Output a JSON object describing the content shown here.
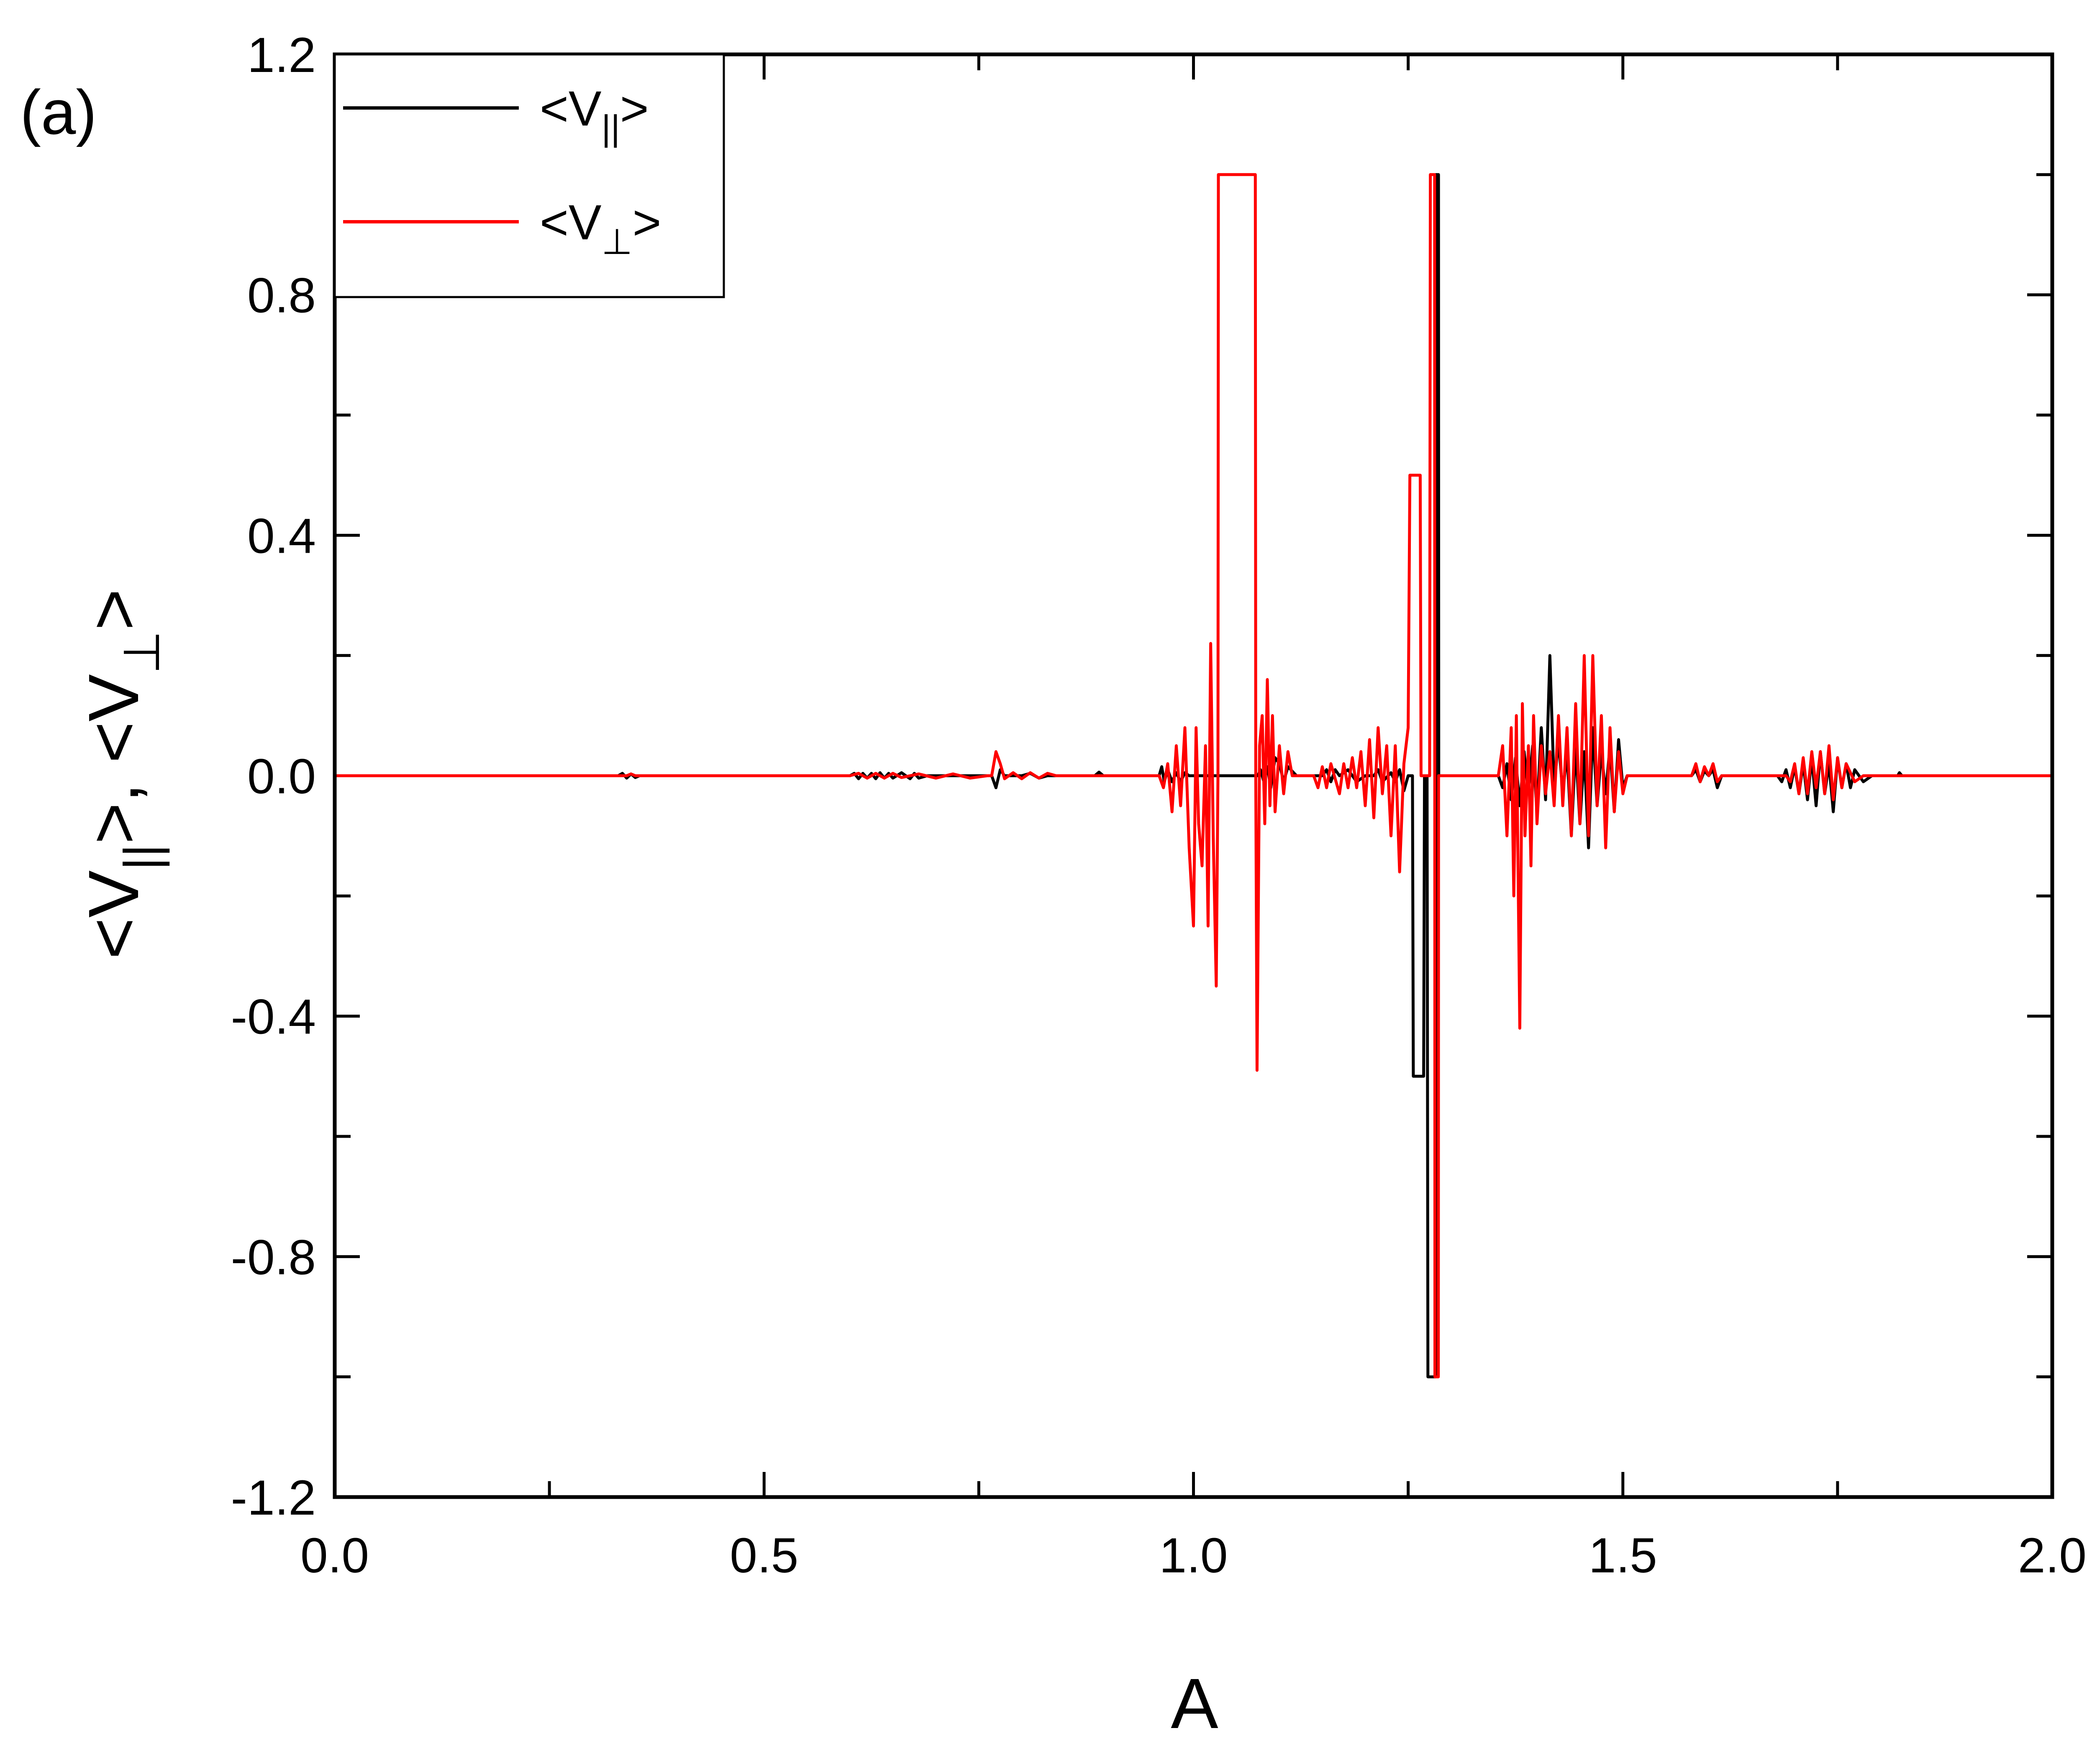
{
  "chart_data": {
    "type": "line",
    "panel_label": "(a)",
    "xlabel": "A",
    "ylabel": {
      "open": "<V",
      "sub_par": "||",
      "mid": ">, <V",
      "sub_perp": "⊥",
      "close": ">"
    },
    "xlim": [
      0.0,
      2.0
    ],
    "ylim": [
      -1.2,
      1.2
    ],
    "x_ticks": [
      "0.0",
      "0.5",
      "1.0",
      "1.5",
      "2.0"
    ],
    "y_ticks": [
      "-1.2",
      "-0.8",
      "-0.4",
      "0.0",
      "0.4",
      "0.8",
      "1.2"
    ],
    "legend_position": "top-left",
    "series": [
      {
        "name": {
          "open": "<V",
          "sub": "||",
          "close": ">"
        },
        "color": "#000000",
        "points": [
          [
            0.0,
            0
          ],
          [
            0.33,
            0
          ],
          [
            0.335,
            0.004
          ],
          [
            0.34,
            -0.004
          ],
          [
            0.345,
            0.003
          ],
          [
            0.35,
            -0.003
          ],
          [
            0.355,
            0
          ],
          [
            0.6,
            0
          ],
          [
            0.605,
            0.004
          ],
          [
            0.61,
            -0.005
          ],
          [
            0.615,
            0.004
          ],
          [
            0.62,
            -0.004
          ],
          [
            0.625,
            0.004
          ],
          [
            0.63,
            -0.005
          ],
          [
            0.635,
            0.005
          ],
          [
            0.64,
            -0.004
          ],
          [
            0.645,
            0.004
          ],
          [
            0.65,
            -0.004
          ],
          [
            0.66,
            0.005
          ],
          [
            0.67,
            -0.005
          ],
          [
            0.675,
            0.004
          ],
          [
            0.68,
            -0.004
          ],
          [
            0.69,
            0
          ],
          [
            0.765,
            0
          ],
          [
            0.77,
            -0.02
          ],
          [
            0.775,
            0.01
          ],
          [
            0.78,
            0
          ],
          [
            0.8,
            0
          ],
          [
            0.81,
            0.004
          ],
          [
            0.82,
            -0.004
          ],
          [
            0.83,
            0
          ],
          [
            0.885,
            0
          ],
          [
            0.89,
            0.006
          ],
          [
            0.895,
            0
          ],
          [
            0.96,
            0
          ],
          [
            0.963,
            0.015
          ],
          [
            0.966,
            -0.01
          ],
          [
            0.97,
            0.01
          ],
          [
            0.975,
            -0.01
          ],
          [
            0.98,
            0.005
          ],
          [
            0.985,
            -0.01
          ],
          [
            0.99,
            0.005
          ],
          [
            0.995,
            0
          ],
          [
            1.05,
            0
          ],
          [
            1.075,
            0
          ],
          [
            1.078,
            0.01
          ],
          [
            1.082,
            -0.01
          ],
          [
            1.086,
            0.015
          ],
          [
            1.09,
            -0.02
          ],
          [
            1.095,
            0.03
          ],
          [
            1.1,
            0.02
          ],
          [
            1.105,
            -0.01
          ],
          [
            1.11,
            0.015
          ],
          [
            1.12,
            0
          ],
          [
            1.15,
            0
          ],
          [
            1.155,
            0.01
          ],
          [
            1.16,
            -0.01
          ],
          [
            1.165,
            0.01
          ],
          [
            1.17,
            0
          ],
          [
            1.18,
            0.01
          ],
          [
            1.19,
            -0.01
          ],
          [
            1.2,
            0
          ],
          [
            1.21,
            0
          ],
          [
            1.215,
            0.01
          ],
          [
            1.22,
            -0.01
          ],
          [
            1.23,
            0.005
          ],
          [
            1.235,
            -0.01
          ],
          [
            1.24,
            0.01
          ],
          [
            1.245,
            -0.025
          ],
          [
            1.25,
            0
          ],
          [
            1.255,
            0
          ],
          [
            1.256,
            -0.5
          ],
          [
            1.268,
            -0.5
          ],
          [
            1.269,
            0
          ],
          [
            1.272,
            0
          ],
          [
            1.273,
            -1.0
          ],
          [
            1.282,
            -1.0
          ],
          [
            1.2823,
            1.0
          ],
          [
            1.2853,
            1.0
          ],
          [
            1.2856,
            0
          ],
          [
            1.355,
            0
          ],
          [
            1.36,
            -0.02
          ],
          [
            1.365,
            0.02
          ],
          [
            1.37,
            -0.04
          ],
          [
            1.375,
            0.03
          ],
          [
            1.38,
            -0.05
          ],
          [
            1.385,
            0.04
          ],
          [
            1.39,
            -0.03
          ],
          [
            1.395,
            0.05
          ],
          [
            1.4,
            -0.06
          ],
          [
            1.405,
            0.08
          ],
          [
            1.41,
            -0.04
          ],
          [
            1.415,
            0.2
          ],
          [
            1.42,
            -0.02
          ],
          [
            1.425,
            0.06
          ],
          [
            1.43,
            -0.03
          ],
          [
            1.435,
            0.04
          ],
          [
            1.44,
            -0.1
          ],
          [
            1.445,
            0.05
          ],
          [
            1.45,
            -0.08
          ],
          [
            1.455,
            0.04
          ],
          [
            1.46,
            -0.12
          ],
          [
            1.465,
            0.08
          ],
          [
            1.47,
            -0.05
          ],
          [
            1.475,
            0.04
          ],
          [
            1.48,
            -0.03
          ],
          [
            1.485,
            0.05
          ],
          [
            1.49,
            -0.06
          ],
          [
            1.495,
            0.06
          ],
          [
            1.5,
            -0.02
          ],
          [
            1.505,
            0
          ],
          [
            1.58,
            0
          ],
          [
            1.585,
            0.01
          ],
          [
            1.59,
            -0.01
          ],
          [
            1.595,
            0.008
          ],
          [
            1.6,
            0
          ],
          [
            1.605,
            0.01
          ],
          [
            1.61,
            -0.02
          ],
          [
            1.615,
            0
          ],
          [
            1.68,
            0
          ],
          [
            1.685,
            -0.01
          ],
          [
            1.69,
            0.01
          ],
          [
            1.695,
            -0.02
          ],
          [
            1.7,
            0.015
          ],
          [
            1.705,
            -0.03
          ],
          [
            1.71,
            0.02
          ],
          [
            1.715,
            -0.04
          ],
          [
            1.72,
            0.03
          ],
          [
            1.725,
            -0.05
          ],
          [
            1.73,
            0.04
          ],
          [
            1.735,
            -0.03
          ],
          [
            1.74,
            0.02
          ],
          [
            1.745,
            -0.06
          ],
          [
            1.75,
            0.03
          ],
          [
            1.755,
            -0.02
          ],
          [
            1.76,
            0.02
          ],
          [
            1.765,
            -0.02
          ],
          [
            1.77,
            0.01
          ],
          [
            1.78,
            -0.01
          ],
          [
            1.79,
            0
          ],
          [
            1.82,
            0
          ],
          [
            1.822,
            0.005
          ],
          [
            1.825,
            0
          ],
          [
            2.0,
            0
          ]
        ]
      },
      {
        "name": {
          "open": "<V",
          "sub": "⊥",
          "close": ">"
        },
        "color": "#ff0000",
        "points": [
          [
            0.0,
            0
          ],
          [
            0.34,
            0
          ],
          [
            0.345,
            0.003
          ],
          [
            0.35,
            0
          ],
          [
            0.6,
            0
          ],
          [
            0.61,
            0.004
          ],
          [
            0.62,
            -0.004
          ],
          [
            0.63,
            0.004
          ],
          [
            0.64,
            -0.004
          ],
          [
            0.65,
            0.004
          ],
          [
            0.66,
            -0.003
          ],
          [
            0.68,
            0.003
          ],
          [
            0.7,
            -0.004
          ],
          [
            0.72,
            0.003
          ],
          [
            0.74,
            -0.004
          ],
          [
            0.76,
            0
          ],
          [
            0.765,
            0
          ],
          [
            0.77,
            0.04
          ],
          [
            0.775,
            0.02
          ],
          [
            0.78,
            -0.005
          ],
          [
            0.79,
            0.005
          ],
          [
            0.8,
            -0.005
          ],
          [
            0.81,
            0.005
          ],
          [
            0.82,
            -0.004
          ],
          [
            0.83,
            0.004
          ],
          [
            0.84,
            0
          ],
          [
            0.96,
            0
          ],
          [
            0.965,
            -0.02
          ],
          [
            0.97,
            0.02
          ],
          [
            0.975,
            -0.06
          ],
          [
            0.98,
            0.05
          ],
          [
            0.985,
            -0.05
          ],
          [
            0.99,
            0.08
          ],
          [
            0.995,
            -0.12
          ],
          [
            1.0,
            -0.25
          ],
          [
            1.003,
            0.08
          ],
          [
            1.006,
            -0.08
          ],
          [
            1.01,
            -0.15
          ],
          [
            1.014,
            0.05
          ],
          [
            1.017,
            -0.25
          ],
          [
            1.02,
            0.22
          ],
          [
            1.023,
            -0.1
          ],
          [
            1.0265,
            -0.35
          ],
          [
            1.0285,
            0
          ],
          [
            1.029,
            1.0
          ],
          [
            1.072,
            1.0
          ],
          [
            1.0725,
            0
          ],
          [
            1.074,
            -0.49
          ],
          [
            1.077,
            0.05
          ],
          [
            1.08,
            0.1
          ],
          [
            1.083,
            -0.08
          ],
          [
            1.086,
            0.16
          ],
          [
            1.089,
            -0.05
          ],
          [
            1.092,
            0.1
          ],
          [
            1.095,
            -0.06
          ],
          [
            1.1,
            0.05
          ],
          [
            1.105,
            -0.03
          ],
          [
            1.11,
            0.04
          ],
          [
            1.115,
            0
          ],
          [
            1.14,
            0
          ],
          [
            1.145,
            -0.02
          ],
          [
            1.15,
            0.015
          ],
          [
            1.155,
            -0.02
          ],
          [
            1.16,
            0.02
          ],
          [
            1.17,
            -0.03
          ],
          [
            1.175,
            0.02
          ],
          [
            1.18,
            -0.02
          ],
          [
            1.185,
            0.03
          ],
          [
            1.19,
            -0.02
          ],
          [
            1.195,
            0.04
          ],
          [
            1.2,
            -0.05
          ],
          [
            1.205,
            0.06
          ],
          [
            1.21,
            -0.07
          ],
          [
            1.215,
            0.08
          ],
          [
            1.22,
            -0.03
          ],
          [
            1.225,
            0.05
          ],
          [
            1.23,
            -0.1
          ],
          [
            1.235,
            0.05
          ],
          [
            1.24,
            -0.16
          ],
          [
            1.245,
            0.02
          ],
          [
            1.25,
            0.08
          ],
          [
            1.252,
            0.5
          ],
          [
            1.264,
            0.5
          ],
          [
            1.265,
            0
          ],
          [
            1.275,
            0
          ],
          [
            1.2758,
            1.0
          ],
          [
            1.2808,
            1.0
          ],
          [
            1.2811,
            -1.0
          ],
          [
            1.2851,
            -1.0
          ],
          [
            1.2854,
            0
          ],
          [
            1.355,
            0
          ],
          [
            1.36,
            0.05
          ],
          [
            1.365,
            -0.1
          ],
          [
            1.37,
            0.08
          ],
          [
            1.373,
            -0.2
          ],
          [
            1.376,
            0.1
          ],
          [
            1.38,
            -0.42
          ],
          [
            1.383,
            0.12
          ],
          [
            1.386,
            -0.1
          ],
          [
            1.39,
            0.05
          ],
          [
            1.393,
            -0.15
          ],
          [
            1.396,
            0.1
          ],
          [
            1.4,
            -0.08
          ],
          [
            1.405,
            0.05
          ],
          [
            1.41,
            -0.03
          ],
          [
            1.415,
            0.04
          ],
          [
            1.42,
            -0.05
          ],
          [
            1.425,
            0.1
          ],
          [
            1.43,
            -0.05
          ],
          [
            1.435,
            0.08
          ],
          [
            1.44,
            -0.1
          ],
          [
            1.445,
            0.12
          ],
          [
            1.45,
            -0.08
          ],
          [
            1.455,
            0.2
          ],
          [
            1.46,
            -0.1
          ],
          [
            1.465,
            0.2
          ],
          [
            1.47,
            -0.05
          ],
          [
            1.475,
            0.1
          ],
          [
            1.48,
            -0.12
          ],
          [
            1.485,
            0.08
          ],
          [
            1.49,
            -0.06
          ],
          [
            1.495,
            0.04
          ],
          [
            1.5,
            -0.03
          ],
          [
            1.505,
            0
          ],
          [
            1.58,
            0
          ],
          [
            1.585,
            0.02
          ],
          [
            1.59,
            -0.01
          ],
          [
            1.595,
            0.015
          ],
          [
            1.6,
            0
          ],
          [
            1.605,
            0.02
          ],
          [
            1.61,
            -0.01
          ],
          [
            1.615,
            0
          ],
          [
            1.69,
            0
          ],
          [
            1.695,
            -0.01
          ],
          [
            1.7,
            0.02
          ],
          [
            1.705,
            -0.03
          ],
          [
            1.71,
            0.03
          ],
          [
            1.715,
            -0.03
          ],
          [
            1.72,
            0.04
          ],
          [
            1.725,
            -0.02
          ],
          [
            1.73,
            0.04
          ],
          [
            1.735,
            -0.03
          ],
          [
            1.74,
            0.05
          ],
          [
            1.745,
            -0.04
          ],
          [
            1.75,
            0.03
          ],
          [
            1.755,
            -0.02
          ],
          [
            1.76,
            0.02
          ],
          [
            1.77,
            -0.01
          ],
          [
            1.78,
            0
          ],
          [
            2.0,
            0
          ]
        ]
      }
    ]
  }
}
